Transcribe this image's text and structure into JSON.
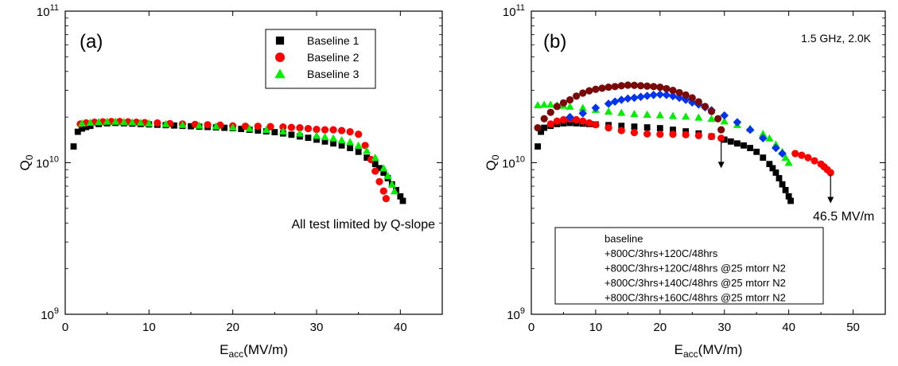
{
  "chart_data": [
    {
      "type": "scatter",
      "panel_label": "(a)",
      "annotation": "All test limited by Q-slope",
      "xlabel": "E",
      "xlabel_sub": "acc",
      "xlabel_unit": "(MV/m)",
      "ylabel": "Q",
      "ylabel_sub": "0",
      "xlim": [
        0,
        45
      ],
      "ylim": [
        1000000000.0,
        100000000000.0
      ],
      "yscale": "log",
      "xticks": [
        0,
        10,
        20,
        30,
        40
      ],
      "yticks": [
        {
          "base": "10",
          "exp": "9",
          "value": 1000000000.0
        },
        {
          "base": "10",
          "exp": "10",
          "value": 10000000000.0
        },
        {
          "base": "10",
          "exp": "11",
          "value": 100000000000.0
        }
      ],
      "grid": false,
      "legend_position": "top-right",
      "series": [
        {
          "name": "Baseline 1",
          "marker": "square",
          "color": "#000000",
          "x": [
            1.0,
            1.5,
            2.0,
            2.5,
            3.0,
            4,
            5,
            6,
            7,
            8,
            9,
            10,
            11,
            12,
            13,
            14,
            15,
            16,
            17,
            18,
            19,
            20,
            21,
            22,
            23,
            24,
            25,
            26,
            27,
            28,
            29,
            30,
            31,
            32,
            33,
            34,
            35,
            36,
            37,
            37.5,
            38,
            38.5,
            39,
            39.5,
            40,
            40.3
          ],
          "y": [
            12800000000.0,
            16000000000.0,
            16800000000.0,
            17200000000.0,
            17500000000.0,
            18000000000.0,
            18200000000.0,
            18300000000.0,
            18200000000.0,
            18100000000.0,
            18000000000.0,
            17900000000.0,
            17800000000.0,
            17700000000.0,
            17600000000.0,
            17500000000.0,
            17400000000.0,
            17300000000.0,
            17200000000.0,
            17100000000.0,
            17000000000.0,
            16900000000.0,
            16700000000.0,
            16500000000.0,
            16300000000.0,
            16100000000.0,
            15900000000.0,
            15600000000.0,
            15300000000.0,
            14900000000.0,
            14600000000.0,
            14200000000.0,
            13800000000.0,
            13400000000.0,
            13000000000.0,
            12500000000.0,
            11800000000.0,
            10800000000.0,
            9800000000.0,
            9200000000.0,
            8600000000.0,
            7900000000.0,
            7200000000.0,
            6600000000.0,
            6000000000.0,
            5600000000.0
          ]
        },
        {
          "name": "Baseline 2",
          "marker": "circle",
          "color": "#ff0000",
          "x": [
            1.8,
            2.5,
            3.5,
            4.5,
            5.5,
            6.5,
            7.5,
            8.5,
            9.5,
            11,
            12.5,
            14,
            15.5,
            17,
            18.5,
            20,
            21.5,
            23,
            24.5,
            26,
            27,
            28,
            29,
            30,
            31,
            32,
            33,
            34,
            35,
            35.8,
            36.5,
            37,
            37.5,
            38,
            38.3
          ],
          "y": [
            18000000000.0,
            18300000000.0,
            18500000000.0,
            18600000000.0,
            18700000000.0,
            18700000000.0,
            18600000000.0,
            18500000000.0,
            18400000000.0,
            18300000000.0,
            18100000000.0,
            18000000000.0,
            17900000000.0,
            17800000000.0,
            17700000000.0,
            17500000000.0,
            17400000000.0,
            17400000000.0,
            17300000000.0,
            17200000000.0,
            17100000000.0,
            17000000000.0,
            16800000000.0,
            16600000000.0,
            16500000000.0,
            16500000000.0,
            16300000000.0,
            16000000000.0,
            15400000000.0,
            13000000000.0,
            10500000000.0,
            8800000000.0,
            7500000000.0,
            6500000000.0,
            5800000000.0
          ]
        },
        {
          "name": "Baseline 3",
          "marker": "triangle",
          "color": "#00ee00",
          "x": [
            2,
            3,
            4,
            5,
            6,
            7,
            8,
            9,
            10,
            12,
            14,
            16,
            18,
            20,
            22,
            24,
            26,
            28,
            30,
            31,
            32,
            33,
            34,
            35,
            36,
            37,
            38,
            38.5,
            39,
            39.3
          ],
          "y": [
            18200000000.0,
            18400000000.0,
            18600000000.0,
            18700000000.0,
            18700000000.0,
            18600000000.0,
            18500000000.0,
            18400000000.0,
            18200000000.0,
            18000000000.0,
            17800000000.0,
            17600000000.0,
            17400000000.0,
            17100000000.0,
            16800000000.0,
            16500000000.0,
            16100000000.0,
            15600000000.0,
            15100000000.0,
            14800000000.0,
            14500000000.0,
            14100000000.0,
            13700000000.0,
            13000000000.0,
            12000000000.0,
            10800000000.0,
            9200000000.0,
            8200000000.0,
            7200000000.0,
            6500000000.0
          ]
        }
      ]
    },
    {
      "type": "scatter",
      "panel_label": "(b)",
      "title_note": "1.5 GHz, 2.0K",
      "annotation": "46.5 MV/m",
      "arrows": [
        {
          "x": 29.5,
          "y_from": 14000000000.0,
          "y_to": 9200000000.0
        },
        {
          "x": 46.5,
          "y_from": 8400000000.0,
          "y_to": 5400000000.0
        }
      ],
      "xlabel": "E",
      "xlabel_sub": "acc",
      "xlabel_unit": "(MV/m)",
      "ylabel": "Q",
      "ylabel_sub": "0",
      "xlim": [
        0,
        55
      ],
      "ylim": [
        1000000000.0,
        100000000000.0
      ],
      "yscale": "log",
      "xticks": [
        0,
        10,
        20,
        30,
        40,
        50
      ],
      "yticks": [
        {
          "base": "10",
          "exp": "9",
          "value": 1000000000.0
        },
        {
          "base": "10",
          "exp": "10",
          "value": 10000000000.0
        },
        {
          "base": "10",
          "exp": "11",
          "value": 100000000000.0
        }
      ],
      "grid": false,
      "legend_position": "bottom-left",
      "series": [
        {
          "name": "baseline",
          "marker": "square",
          "color": "#000000",
          "x": [
            1,
            1.5,
            2,
            3,
            4,
            5,
            6,
            7,
            8,
            9,
            10,
            12,
            14,
            16,
            18,
            20,
            22,
            24,
            26,
            28,
            30,
            31,
            32,
            33,
            34,
            35,
            36,
            37,
            37.5,
            38,
            38.5,
            39,
            39.5,
            40,
            40.3
          ],
          "y": [
            12800000000.0,
            16000000000.0,
            17000000000.0,
            17500000000.0,
            18000000000.0,
            18200000000.0,
            18300000000.0,
            18200000000.0,
            18100000000.0,
            18000000000.0,
            17900000000.0,
            17700000000.0,
            17500000000.0,
            17300000000.0,
            17100000000.0,
            16900000000.0,
            16500000000.0,
            16100000000.0,
            15600000000.0,
            14900000000.0,
            14200000000.0,
            13800000000.0,
            13400000000.0,
            13000000000.0,
            12500000000.0,
            11800000000.0,
            10800000000.0,
            9800000000.0,
            9200000000.0,
            8600000000.0,
            7900000000.0,
            7200000000.0,
            6600000000.0,
            6000000000.0,
            5600000000.0
          ]
        },
        {
          "name": "+800C/3hrs+120C/48hrs",
          "marker": "circle",
          "color": "#ff0000",
          "x": [
            3,
            4,
            5,
            6,
            7,
            8,
            9,
            10,
            12,
            14,
            16,
            18,
            20,
            22,
            24,
            26,
            28,
            29.5,
            41,
            42,
            43,
            44,
            45,
            45.5,
            46,
            46.5
          ],
          "y": [
            18000000000.0,
            18800000000.0,
            19200000000.0,
            19400000000.0,
            19200000000.0,
            18800000000.0,
            18300000000.0,
            17800000000.0,
            17000000000.0,
            16300000000.0,
            15800000000.0,
            15500000000.0,
            15400000000.0,
            15400000000.0,
            15300000000.0,
            15100000000.0,
            14900000000.0,
            14500000000.0,
            11500000000.0,
            11200000000.0,
            10800000000.0,
            10300000000.0,
            9800000000.0,
            9400000000.0,
            9000000000.0,
            8600000000.0
          ]
        },
        {
          "name": "+800C/3hrs+120C/48hrs @25 mtorr N2",
          "marker": "triangle",
          "color": "#00ee00",
          "x": [
            1,
            2,
            3,
            4,
            5,
            6,
            8,
            10,
            12,
            14,
            16,
            18,
            20,
            22,
            24,
            26,
            28,
            30,
            32,
            34,
            36,
            37,
            38,
            39,
            39.5,
            40
          ],
          "y": [
            24000000000.0,
            24200000000.0,
            24200000000.0,
            24000000000.0,
            23800000000.0,
            23500000000.0,
            23000000000.0,
            22400000000.0,
            21800000000.0,
            21400000000.0,
            21000000000.0,
            20800000000.0,
            20600000000.0,
            20400000000.0,
            20200000000.0,
            19900000000.0,
            19500000000.0,
            18800000000.0,
            17800000000.0,
            16800000000.0,
            15500000000.0,
            14500000000.0,
            13200000000.0,
            11800000000.0,
            10800000000.0,
            10000000000.0
          ]
        },
        {
          "name": "+800C/3hrs+140C/48hrs @25 mtorr N2",
          "marker": "diamond",
          "color": "#0033ee",
          "x": [
            6,
            8,
            10,
            12,
            13,
            14,
            15,
            16,
            17,
            18,
            19,
            20,
            21,
            22,
            23,
            24,
            25,
            26,
            27,
            28,
            30,
            32,
            34,
            36,
            38,
            39
          ],
          "y": [
            20000000000.0,
            21200000000.0,
            23000000000.0,
            24500000000.0,
            25300000000.0,
            26000000000.0,
            26500000000.0,
            26800000000.0,
            27200000000.0,
            27600000000.0,
            28000000000.0,
            28200000000.0,
            28000000000.0,
            27500000000.0,
            26800000000.0,
            26000000000.0,
            25000000000.0,
            24200000000.0,
            23200000000.0,
            22200000000.0,
            20500000000.0,
            18500000000.0,
            16500000000.0,
            14500000000.0,
            12500000000.0,
            11500000000.0
          ]
        },
        {
          "name": "+800C/3hrs+160C/48hrs @25 mtorr N2",
          "marker": "circle",
          "color": "#7a0a0a",
          "x": [
            1,
            2,
            3,
            4,
            5,
            6,
            7,
            8,
            9,
            10,
            11,
            12,
            13,
            14,
            15,
            16,
            17,
            18,
            19,
            20,
            21,
            22,
            23,
            24,
            25,
            26,
            27,
            28,
            29,
            29.5
          ],
          "y": [
            17000000000.0,
            19500000000.0,
            21500000000.0,
            23500000000.0,
            24800000000.0,
            26000000000.0,
            27500000000.0,
            28800000000.0,
            29800000000.0,
            30500000000.0,
            31000000000.0,
            31500000000.0,
            31800000000.0,
            32200000000.0,
            32500000000.0,
            32400000000.0,
            32200000000.0,
            32000000000.0,
            31800000000.0,
            31500000000.0,
            30800000000.0,
            30000000000.0,
            29000000000.0,
            28000000000.0,
            26800000000.0,
            25200000000.0,
            23500000000.0,
            21800000000.0,
            19500000000.0,
            16500000000.0
          ]
        }
      ]
    }
  ]
}
